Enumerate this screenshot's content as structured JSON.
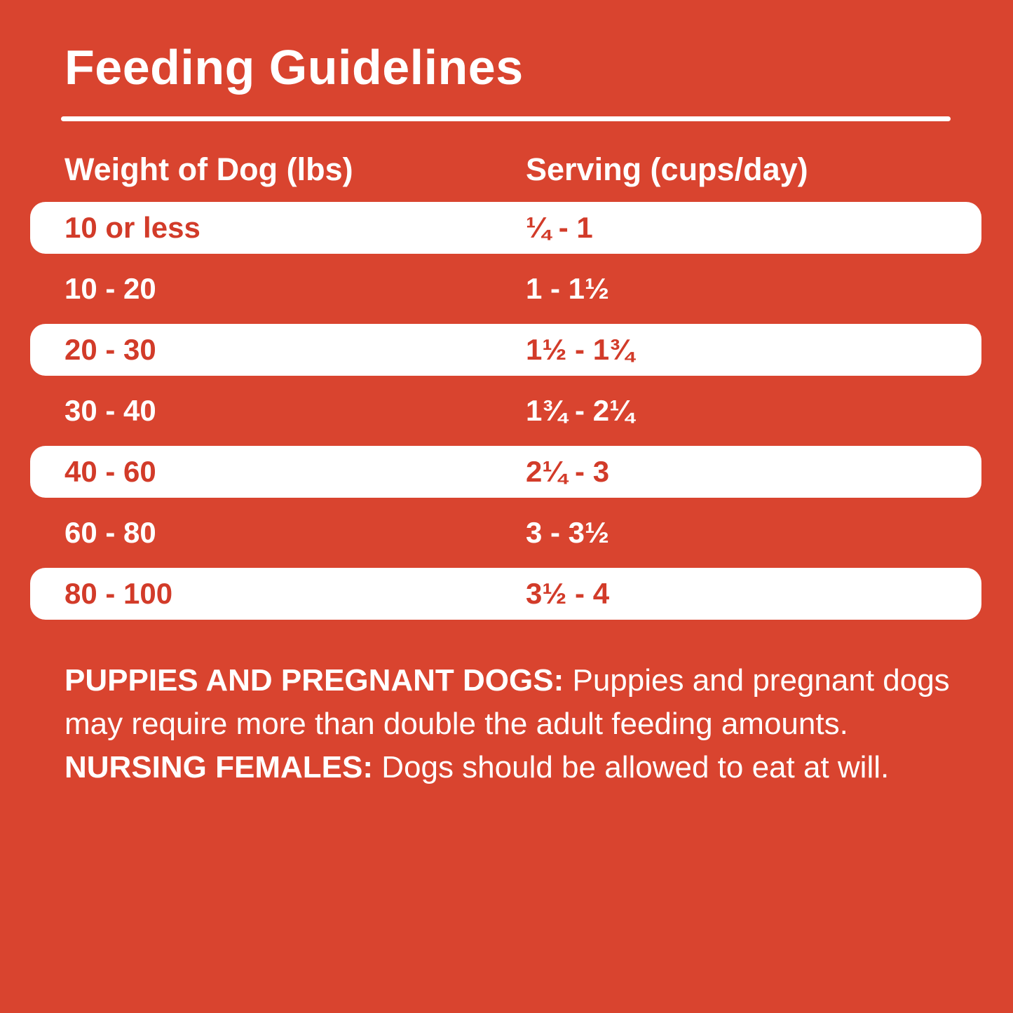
{
  "page": {
    "background_color": "#d9442f",
    "text_color": "#ffffff",
    "pill_background": "#ffffff",
    "pill_text_color": "#d23b29"
  },
  "title": "Feeding Guidelines",
  "table": {
    "headers": [
      "Weight of Dog (lbs)",
      "Serving (cups/day)"
    ],
    "rows": [
      {
        "weight": "10 or less",
        "serving": "¼ - 1",
        "highlighted": true
      },
      {
        "weight": "10 - 20",
        "serving": "1 - 1½",
        "highlighted": false
      },
      {
        "weight": "20 - 30",
        "serving": "1½ - 1¾",
        "highlighted": true
      },
      {
        "weight": "30 - 40",
        "serving": "1¾ - 2¼",
        "highlighted": false
      },
      {
        "weight": "40 - 60",
        "serving": "2¼ - 3",
        "highlighted": true
      },
      {
        "weight": "60 - 80",
        "serving": "3 - 3½",
        "highlighted": false
      },
      {
        "weight": "80 - 100",
        "serving": "3½ - 4",
        "highlighted": true
      }
    ]
  },
  "footer": {
    "bold1": "PUPPIES AND PREGNANT DOGS:",
    "text1": "Puppies and pregnant dogs may require more than double the adult feeding amounts.",
    "bold2": "NURSING FEMALES:",
    "text2": "Dogs should be allowed to eat at will."
  }
}
